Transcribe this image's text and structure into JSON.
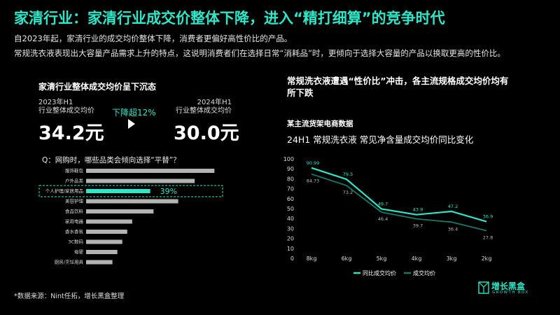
{
  "header": {
    "title": "家清行业：家清行业成交价整体下降，进入“精打细算”的竞争时代",
    "line1": "自2023年起，家清行业的成交均价整体下降，消费者更偏好高性价比的产品。",
    "line2": "常规洗衣液表现出大容量产品需求上升的特点，这说明消费者们在选择日常“消耗品”时，更倾向于选择大容量的产品以换取更高的性价比。"
  },
  "left": {
    "title": "家清行业整体成交均价呈下沉态",
    "year1": "2023年H1",
    "year1_label": "行业整体成交均价",
    "value1": "34.2元",
    "year2": "2024年H1",
    "year2_label": "行业整体成交均价",
    "value2": "30.0元",
    "drop_label": "下降超12%",
    "question": "Q：网购时，哪些品类会倾向选择“平替”？",
    "source": "*数据来源：Nint任拓，增长黑盒整理"
  },
  "right": {
    "title": "常规洗衣液遭遇“性价比”冲击，各主流规格成交均价均有所下跌",
    "subtitle": "某主流货架电商数据",
    "chart_title": "24H1 常规洗衣液 常见净含量成交均价同比变化"
  },
  "brand": {
    "name": "增长黑盒",
    "sub": "GROWTH BOX",
    "accent": "#2ee6c8"
  },
  "chart_data": [
    {
      "type": "bar",
      "orientation": "horizontal",
      "categories": [
        "服饰鞋包",
        "户外品类",
        "个人护理/家居用品",
        "美容护理",
        "食品饮料",
        "家用电器",
        "香水香氛",
        "3C数码",
        "母婴",
        "厨房/烹饪用具"
      ],
      "values": [
        78,
        66,
        39,
        56,
        41,
        28,
        25,
        22,
        19,
        16
      ],
      "highlight_index": 2,
      "highlight_label": "39%",
      "bar_color": "#b3b3b3",
      "highlight_color": "#2ee6c8"
    },
    {
      "type": "line",
      "categories": [
        "8kg",
        "6kg",
        "5kg",
        "4kg",
        "3kg",
        "2kg"
      ],
      "ylim": [
        0,
        100
      ],
      "yticks": [
        0,
        10,
        20,
        30,
        40,
        50,
        60,
        70,
        80,
        90,
        100
      ],
      "grid": false,
      "legend": "bottom",
      "series": [
        {
          "name": "同比成交均价",
          "values": [
            90.99,
            79.5,
            49.7,
            43.9,
            47.2,
            36.9
          ],
          "color": "#2ee6c8"
        },
        {
          "name": "成交均价",
          "values": [
            84.73,
            73.2,
            46.4,
            39.7,
            36.4,
            27.8
          ],
          "color": "#167a6a"
        }
      ]
    }
  ]
}
